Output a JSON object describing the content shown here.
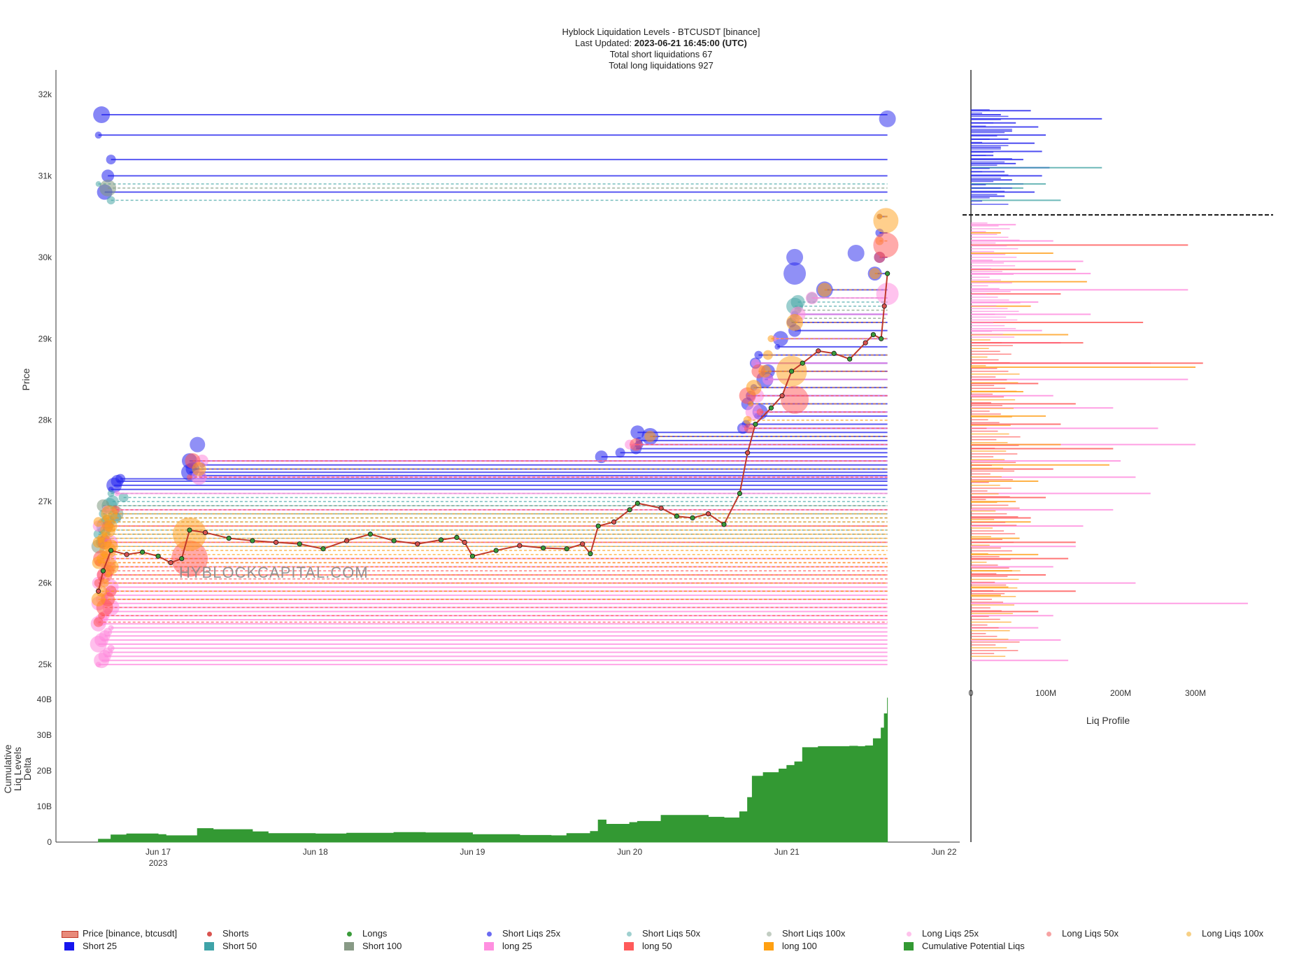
{
  "header": {
    "title": "Hyblock Liquidation Levels - BTCUSDT [binance]",
    "updated_label": "Last Updated:",
    "updated_value": "2023-06-21 16:45:00 (UTC)",
    "short_total": "Total short liquidations 67",
    "long_total": "Total long liquidations 927"
  },
  "watermark": "HYBLOCKCAPITAL.COM",
  "colors": {
    "short25": "#2222ee",
    "short50": "#4aa8a8",
    "short100": "#7f9980",
    "long25": "#ff88dd",
    "long50": "#ff5555",
    "long100": "#ff9f1a",
    "cumulative": "#339933",
    "candle_up": "#2e8b57",
    "candle_down": "#d9534f"
  },
  "chart_data": [
    {
      "type": "line",
      "title": "Hyblock Liquidation Levels - BTCUSDT [binance]",
      "ylabel": "Price",
      "ylim": [
        24700,
        32300
      ],
      "y_ticks": [
        "25k",
        "26k",
        "27k",
        "28k",
        "29k",
        "30k",
        "31k",
        "32k"
      ],
      "y_tick_values": [
        25000,
        26000,
        27000,
        28000,
        29000,
        30000,
        31000,
        32000
      ],
      "x_tick_labels": [
        "Jun 17",
        "Jun 18",
        "Jun 19",
        "Jun 20",
        "Jun 21",
        "Jun 22"
      ],
      "x_tick_values": [
        17,
        18,
        19,
        20,
        21,
        22
      ],
      "x_year_label": "2023",
      "xlim": [
        16.35,
        22.1
      ],
      "price_path": [
        [
          16.62,
          25900
        ],
        [
          16.65,
          26150
        ],
        [
          16.7,
          26400
        ],
        [
          16.8,
          26350
        ],
        [
          16.9,
          26380
        ],
        [
          17.0,
          26330
        ],
        [
          17.08,
          26250
        ],
        [
          17.15,
          26300
        ],
        [
          17.2,
          26650
        ],
        [
          17.3,
          26620
        ],
        [
          17.45,
          26550
        ],
        [
          17.6,
          26520
        ],
        [
          17.75,
          26500
        ],
        [
          17.9,
          26480
        ],
        [
          18.05,
          26420
        ],
        [
          18.2,
          26520
        ],
        [
          18.35,
          26600
        ],
        [
          18.5,
          26520
        ],
        [
          18.65,
          26480
        ],
        [
          18.8,
          26530
        ],
        [
          18.9,
          26560
        ],
        [
          18.95,
          26500
        ],
        [
          19.0,
          26330
        ],
        [
          19.15,
          26400
        ],
        [
          19.3,
          26460
        ],
        [
          19.45,
          26430
        ],
        [
          19.6,
          26420
        ],
        [
          19.7,
          26480
        ],
        [
          19.75,
          26360
        ],
        [
          19.8,
          26700
        ],
        [
          19.9,
          26750
        ],
        [
          20.0,
          26900
        ],
        [
          20.05,
          26980
        ],
        [
          20.2,
          26920
        ],
        [
          20.3,
          26820
        ],
        [
          20.4,
          26800
        ],
        [
          20.5,
          26850
        ],
        [
          20.6,
          26720
        ],
        [
          20.7,
          27100
        ],
        [
          20.75,
          27600
        ],
        [
          20.8,
          27950
        ],
        [
          20.9,
          28150
        ],
        [
          20.97,
          28300
        ],
        [
          21.03,
          28600
        ],
        [
          21.1,
          28700
        ],
        [
          21.2,
          28850
        ],
        [
          21.3,
          28820
        ],
        [
          21.4,
          28750
        ],
        [
          21.5,
          28950
        ],
        [
          21.55,
          29050
        ],
        [
          21.6,
          29000
        ],
        [
          21.62,
          29400
        ],
        [
          21.64,
          29800
        ]
      ],
      "series": [
        {
          "name": "Price [binance, btcusdt]",
          "kind": "price"
        },
        {
          "name": "Shorts",
          "kind": "marker",
          "color": "#d9534f"
        },
        {
          "name": "Longs",
          "kind": "marker",
          "color": "#3a9b3a"
        },
        {
          "name": "Short Liqs 25x",
          "kind": "level",
          "color": "#2222ee",
          "levels": [
            27150,
            27200,
            27250,
            27280,
            27320,
            27360,
            27400,
            27650,
            27700,
            27450,
            27500,
            27550,
            27600,
            27750,
            27800,
            27850,
            27900,
            27950,
            28050,
            28100,
            28200,
            28300,
            28400,
            28500,
            28600,
            28700,
            28800,
            28900,
            29000,
            29100,
            29200,
            29300,
            29600,
            29800,
            30000,
            30300,
            30500,
            30800,
            31000,
            31200,
            31500,
            31750
          ]
        },
        {
          "name": "Short Liqs 50x",
          "kind": "level",
          "color": "#4aa8a8",
          "levels": [
            26600,
            26650,
            26700,
            26750,
            26800,
            26850,
            26900,
            26950,
            27000,
            27050,
            27100,
            29400,
            29450,
            29500,
            30700,
            30900
          ]
        },
        {
          "name": "Short Liqs 100x",
          "kind": "level",
          "color": "#7f9980",
          "levels": [
            26450,
            26500,
            26550,
            26600,
            26850,
            26950,
            29250,
            29350,
            30850
          ]
        },
        {
          "name": "Long Liqs 25x",
          "kind": "level",
          "color": "#ff88dd",
          "levels": [
            25000,
            25050,
            25100,
            25150,
            25200,
            25250,
            25300,
            25350,
            25400,
            25450,
            25500,
            25550,
            25600,
            25650,
            25700,
            25750,
            25800,
            25850,
            25900,
            25950,
            26000,
            26100,
            26200,
            26300,
            26500,
            26700,
            26900,
            27100,
            27300,
            27500,
            27700,
            27900,
            28100,
            28300,
            28500,
            28700,
            29000,
            29300,
            29500
          ]
        },
        {
          "name": "Long Liqs 50x",
          "kind": "level",
          "color": "#ff5555",
          "levels": [
            25520,
            25600,
            25700,
            25800,
            25900,
            26000,
            26050,
            26100,
            26150,
            26200,
            26250,
            26300,
            26500,
            26700,
            26900,
            27300,
            27500,
            27700,
            27900,
            28100,
            28300,
            28600,
            30000
          ]
        },
        {
          "name": "Long Liqs 100x",
          "kind": "level",
          "color": "#ff9f1a",
          "levels": [
            25800,
            25900,
            26000,
            26100,
            26200,
            26250,
            26300,
            26350,
            26400,
            26450,
            26500,
            26550,
            26600,
            26650,
            26700,
            26750,
            26800,
            26850,
            27400,
            27800,
            28000,
            28200,
            28400,
            28600,
            28800,
            29000,
            29200,
            29600,
            29800,
            30200,
            30500
          ]
        }
      ]
    },
    {
      "type": "area",
      "ylabel": "Cumulative Liq Levels Delta",
      "ylim": [
        0,
        41
      ],
      "y_ticks": [
        "0",
        "10B",
        "20B",
        "30B",
        "40B"
      ],
      "y_tick_values": [
        0,
        10,
        20,
        30,
        40
      ],
      "series": [
        {
          "name": "Cumulative Potential Liqs",
          "color": "#339933",
          "x": [
            16.62,
            16.7,
            16.8,
            17.0,
            17.05,
            17.25,
            17.35,
            17.6,
            17.7,
            18.0,
            18.2,
            18.5,
            18.7,
            19.0,
            19.3,
            19.5,
            19.6,
            19.75,
            19.8,
            19.85,
            20.0,
            20.05,
            20.2,
            20.5,
            20.6,
            20.7,
            20.75,
            20.78,
            20.85,
            20.95,
            21.0,
            21.05,
            21.1,
            21.2,
            21.4,
            21.45,
            21.5,
            21.55,
            21.6,
            21.62,
            21.64
          ],
          "values": [
            0.8,
            2.0,
            2.3,
            2.1,
            1.8,
            3.8,
            3.5,
            2.9,
            2.4,
            2.3,
            2.5,
            2.7,
            2.6,
            2.1,
            1.9,
            1.8,
            2.4,
            3.0,
            6.2,
            5.0,
            5.5,
            5.8,
            7.5,
            7.0,
            6.8,
            8.5,
            12.5,
            18.5,
            19.5,
            20.5,
            21.5,
            22.5,
            26.5,
            26.8,
            26.9,
            26.8,
            27.0,
            29.0,
            32.0,
            36.0,
            40.5
          ]
        }
      ]
    },
    {
      "type": "bar",
      "orientation": "horizontal",
      "xlabel": "Liq Profile",
      "x_ticks": [
        "0",
        "100M",
        "200M",
        "300M"
      ],
      "x_tick_values": [
        0,
        100,
        200,
        300
      ],
      "xlim": [
        0,
        385
      ],
      "current_price": 30520,
      "series": [
        {
          "name": "Short Liqs 25x",
          "color": "#2222ee",
          "levels": [
            31800,
            31750,
            31700,
            31650,
            31600,
            31550,
            31500,
            31450,
            31400,
            31350,
            31300,
            31250,
            31200,
            31150,
            31100,
            31050,
            31000,
            30950,
            30900,
            30850,
            30800,
            30750
          ],
          "values": [
            80,
            40,
            175,
            60,
            90,
            55,
            100,
            50,
            85,
            40,
            95,
            30,
            70,
            60,
            105,
            45,
            95,
            55,
            70,
            40,
            85,
            45
          ]
        },
        {
          "name": "Short Liqs 50x",
          "color": "#4aa8a8",
          "levels": [
            31100,
            30900,
            30850,
            30700
          ],
          "values": [
            175,
            100,
            70,
            120
          ]
        },
        {
          "name": "Long Liqs 25x",
          "color": "#ff88dd",
          "levels": [
            30400,
            30200,
            29950,
            29800,
            29600,
            29450,
            29300,
            29100,
            28950,
            28700,
            28500,
            28300,
            28150,
            27900,
            27700,
            27500,
            27300,
            27100,
            26900,
            26700,
            26450,
            26200,
            26000,
            25750,
            25600,
            25450,
            25300,
            25050
          ],
          "values": [
            60,
            110,
            150,
            160,
            290,
            90,
            160,
            95,
            120,
            240,
            290,
            110,
            190,
            250,
            300,
            200,
            220,
            240,
            190,
            150,
            140,
            110,
            220,
            370,
            110,
            90,
            120,
            130
          ]
        },
        {
          "name": "Long Liqs 50x",
          "color": "#ff5555",
          "levels": [
            30150,
            29850,
            29550,
            29200,
            28950,
            28700,
            28450,
            28200,
            27950,
            27650,
            27400,
            27050,
            26800,
            26500,
            26300,
            26100,
            25900,
            25650
          ],
          "values": [
            290,
            140,
            120,
            230,
            150,
            310,
            90,
            140,
            120,
            190,
            110,
            100,
            80,
            140,
            130,
            100,
            140,
            90
          ]
        },
        {
          "name": "Long Liqs 100x",
          "color": "#ff9f1a",
          "levels": [
            30300,
            30050,
            29700,
            29400,
            29050,
            28650,
            28350,
            28050,
            27700,
            27450,
            27250,
            27000,
            26750,
            26550,
            26350,
            26150,
            25950,
            25850
          ],
          "values": [
            40,
            110,
            155,
            80,
            130,
            300,
            70,
            100,
            120,
            185,
            90,
            60,
            80,
            65,
            90,
            55,
            50,
            40
          ]
        }
      ]
    }
  ],
  "legend": [
    {
      "label": "Price [binance, btcusdt]",
      "swatch": "candle",
      "color": "#e88a7a"
    },
    {
      "label": "Shorts",
      "swatch": "dot",
      "color": "#d9534f"
    },
    {
      "label": "Longs",
      "swatch": "dot",
      "color": "#3a9b3a"
    },
    {
      "label": "Short Liqs 25x",
      "swatch": "dot",
      "color": "#6a6af2"
    },
    {
      "label": "Short Liqs 50x",
      "swatch": "dot",
      "color": "#9fd0cf"
    },
    {
      "label": "Short Liqs 100x",
      "swatch": "dot",
      "color": "#c2cdc2"
    },
    {
      "label": "Long Liqs 25x",
      "swatch": "dot",
      "color": "#ffc2ec"
    },
    {
      "label": "Long Liqs 50x",
      "swatch": "dot",
      "color": "#f7a3a3"
    },
    {
      "label": "Long Liqs 100x",
      "swatch": "dot",
      "color": "#f7d086"
    },
    {
      "label": "Short 25",
      "swatch": "square",
      "color": "#1515ee"
    },
    {
      "label": "Short 50",
      "swatch": "square",
      "color": "#3fa3a8"
    },
    {
      "label": "Short 100",
      "swatch": "square",
      "color": "#889a86"
    },
    {
      "label": "long 25",
      "swatch": "square",
      "color": "#ff8fe0"
    },
    {
      "label": "long 50",
      "swatch": "square",
      "color": "#ff5a5a"
    },
    {
      "label": "long 100",
      "swatch": "square",
      "color": "#ffa011"
    },
    {
      "label": "Cumulative Potential Liqs",
      "swatch": "square",
      "color": "#339933"
    }
  ]
}
